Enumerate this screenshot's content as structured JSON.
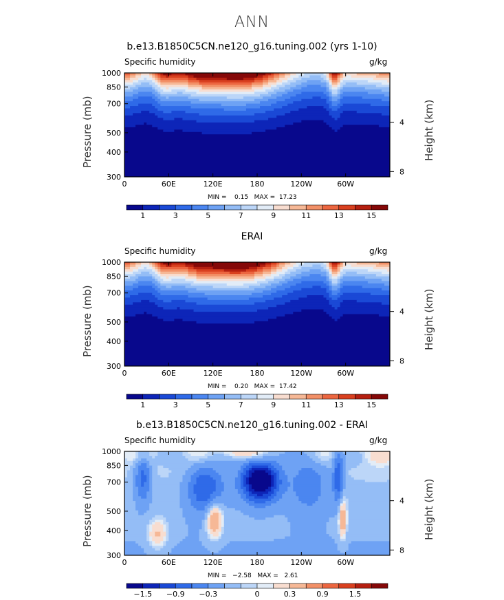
{
  "figure": {
    "title": "ANN"
  },
  "colors": {
    "cmap": [
      "#08088c",
      "#0d25b8",
      "#1a49d6",
      "#2f6ae8",
      "#4b86f0",
      "#6ea2f4",
      "#94bdf6",
      "#bcd6f8",
      "#e2ecf7",
      "#f8ddd0",
      "#f6b896",
      "#f29067",
      "#ec6640",
      "#d9401f",
      "#b51f10",
      "#850808"
    ],
    "land": "#000000"
  },
  "chart_data": [
    {
      "type": "heatmap",
      "title": "b.e13.B1850C5CN.ne120_g16.tuning.002 (yrs 1-10)",
      "variable_label": "Specific humidity",
      "units_label": "g/kg",
      "ylabel": "Pressure (mb)",
      "y2label": "Height (km)",
      "x_ticks": [
        "0",
        "60E",
        "120E",
        "180",
        "120W",
        "60W"
      ],
      "y_ticks": [
        "300",
        "400",
        "500",
        "700",
        "850",
        "1000"
      ],
      "y2_ticks": [
        "8",
        "4"
      ],
      "colorbar_labels": [
        "1",
        "3",
        "5",
        "7",
        "9",
        "11",
        "13",
        "15"
      ],
      "min_label": "MIN =",
      "min_value": "0.15",
      "max_label": "MAX =",
      "max_value": "17.23",
      "xlim": [
        0,
        360
      ],
      "ylim": [
        1000,
        300
      ],
      "contour_levels": [
        0,
        1,
        2,
        3,
        4,
        5,
        6,
        7,
        8,
        9,
        10,
        11,
        12,
        13,
        14,
        15,
        16
      ],
      "land": true
    },
    {
      "type": "heatmap",
      "title": "ERAI",
      "variable_label": "Specific humidity",
      "units_label": "g/kg",
      "ylabel": "Pressure (mb)",
      "y2label": "Height (km)",
      "x_ticks": [
        "0",
        "60E",
        "120E",
        "180",
        "120W",
        "60W"
      ],
      "y_ticks": [
        "300",
        "400",
        "500",
        "700",
        "850",
        "1000"
      ],
      "y2_ticks": [
        "8",
        "4"
      ],
      "colorbar_labels": [
        "1",
        "3",
        "5",
        "7",
        "9",
        "11",
        "13",
        "15"
      ],
      "min_label": "MIN =",
      "min_value": "0.20",
      "max_label": "MAX =",
      "max_value": "17.42",
      "xlim": [
        0,
        360
      ],
      "ylim": [
        1000,
        300
      ],
      "contour_levels": [
        0,
        1,
        2,
        3,
        4,
        5,
        6,
        7,
        8,
        9,
        10,
        11,
        12,
        13,
        14,
        15,
        16
      ],
      "land": false
    },
    {
      "type": "heatmap",
      "title": "b.e13.B1850C5CN.ne120_g16.tuning.002 - ERAI",
      "variable_label": "Specific humidity",
      "units_label": "g/kg",
      "ylabel": "Pressure (mb)",
      "y2label": "Height (km)",
      "x_ticks": [
        "0",
        "60E",
        "120E",
        "180",
        "120W",
        "60W"
      ],
      "y_ticks": [
        "300",
        "400",
        "500",
        "700",
        "850",
        "1000"
      ],
      "y2_ticks": [
        "8",
        "4"
      ],
      "colorbar_labels": [
        "−1.5",
        "−0.9",
        "−0.3",
        "0",
        "0.3",
        "0.9",
        "1.5"
      ],
      "min_label": "MIN =",
      "min_value": "−2.58",
      "max_label": "MAX =",
      "max_value": "2.61",
      "xlim": [
        0,
        360
      ],
      "ylim": [
        1000,
        300
      ],
      "contour_levels": [
        -2.1,
        -1.8,
        -1.5,
        -1.2,
        -0.9,
        -0.6,
        -0.3,
        -0.1,
        0,
        0.1,
        0.3,
        0.6,
        0.9,
        1.2,
        1.5,
        1.8,
        2.1
      ],
      "land": true
    }
  ]
}
